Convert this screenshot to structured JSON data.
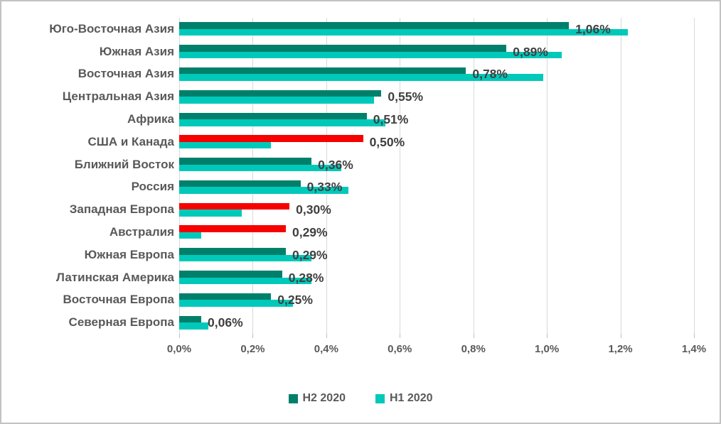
{
  "chart_data": {
    "type": "bar",
    "orientation": "horizontal",
    "title": "",
    "xlabel": "",
    "ylabel": "",
    "xlim": [
      0,
      1.4
    ],
    "grid": true,
    "legend_position": "bottom",
    "categories": [
      "Юго-Восточная Азия",
      "Южная Азия",
      "Восточная Азия",
      "Центральная Азия",
      "Африка",
      "США и Канада",
      "Ближний Восток",
      "Россия",
      "Западная Европа",
      "Австралия",
      "Южная Европа",
      "Латинская Америка",
      "Восточная Европа",
      "Северная Европа"
    ],
    "series": [
      {
        "name": "H2 2020",
        "values": [
          1.06,
          0.89,
          0.78,
          0.55,
          0.51,
          0.5,
          0.36,
          0.33,
          0.3,
          0.29,
          0.29,
          0.28,
          0.25,
          0.06
        ],
        "color": "#00806B",
        "highlight_color": "#F60000",
        "highlight_indices": [
          5,
          8,
          9
        ]
      },
      {
        "name": "H1 2020",
        "values": [
          1.22,
          1.04,
          0.99,
          0.53,
          0.56,
          0.25,
          0.44,
          0.46,
          0.17,
          0.06,
          0.36,
          0.36,
          0.31,
          0.08
        ],
        "color": "#00C9BA"
      }
    ],
    "data_labels": [
      "1,06%",
      "0,89%",
      "0,78%",
      "0,55%",
      "0,51%",
      "0,50%",
      "0,36%",
      "0,33%",
      "0,30%",
      "0,29%",
      "0,29%",
      "0,28%",
      "0,25%",
      "0,06%"
    ],
    "x_tick_values": [
      0,
      0.2,
      0.4,
      0.6,
      0.8,
      1.0,
      1.2,
      1.4
    ],
    "x_tick_labels": [
      "0,0%",
      "0,2%",
      "0,4%",
      "0,6%",
      "0,8%",
      "1,0%",
      "1,2%",
      "1,4%"
    ]
  },
  "colors": {
    "h2_bar": "#00806B",
    "h1_bar": "#00C9BA",
    "highlight_bar": "#F60000",
    "value_label_text": "#404040",
    "axis_text": "#595959",
    "gridline": "#D9D9D9",
    "frame_border": "#C2C2C2"
  }
}
